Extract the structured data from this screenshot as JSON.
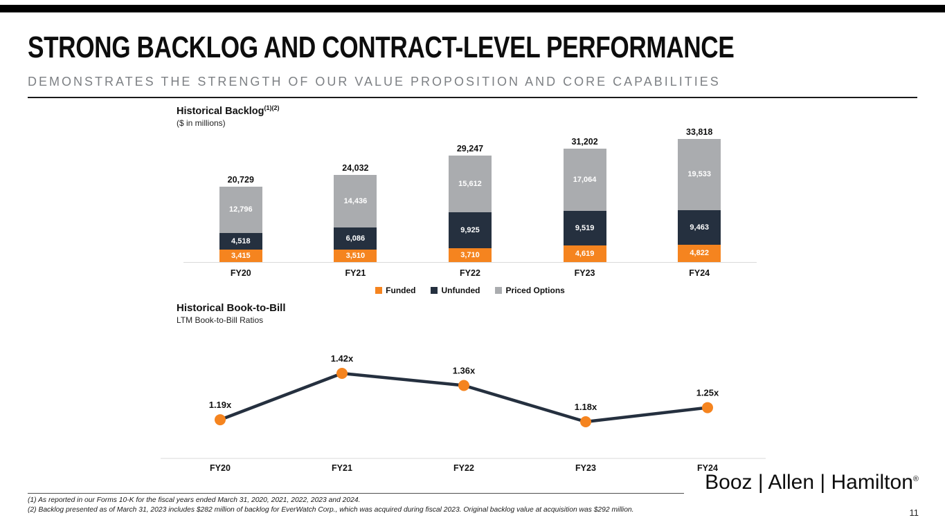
{
  "header": {
    "title": "STRONG BACKLOG AND CONTRACT-LEVEL PERFORMANCE",
    "subtitle": "DEMONSTRATES THE STRENGTH OF OUR VALUE PROPOSITION AND CORE CAPABILITIES"
  },
  "backlog": {
    "title": "Historical Backlog",
    "title_sup": "(1)(2)",
    "subtitle": "($ in millions)"
  },
  "book_to_bill": {
    "title": "Historical Book-to-Bill",
    "subtitle": "LTM Book-to-Bill Ratios"
  },
  "chart_data": [
    {
      "type": "bar",
      "stacked": true,
      "title": "Historical Backlog",
      "units": "$ in millions",
      "categories": [
        "FY20",
        "FY21",
        "FY22",
        "FY23",
        "FY24"
      ],
      "series": [
        {
          "name": "Funded",
          "color": "#F5841F",
          "values": [
            3415,
            3510,
            3710,
            4619,
            4822
          ]
        },
        {
          "name": "Unfunded",
          "color": "#25303F",
          "values": [
            4518,
            6086,
            9925,
            9519,
            9463
          ]
        },
        {
          "name": "Priced Options",
          "color": "#AAACAF",
          "values": [
            12796,
            14436,
            15612,
            17064,
            19533
          ]
        }
      ],
      "totals": [
        20729,
        24032,
        29247,
        31202,
        33818
      ],
      "legend_position": "bottom",
      "grid": false
    },
    {
      "type": "line",
      "title": "Historical Book-to-Bill",
      "ylabel": "LTM Book-to-Bill Ratios",
      "categories": [
        "FY20",
        "FY21",
        "FY22",
        "FY23",
        "FY24"
      ],
      "values": [
        1.19,
        1.42,
        1.36,
        1.18,
        1.25
      ],
      "value_suffix": "x",
      "line_color": "#25303F",
      "marker_color": "#F5841F",
      "grid": false
    }
  ],
  "footnotes": [
    "(1) As reported in our Forms 10-K for the fiscal years ended March 31, 2020, 2021, 2022, 2023 and 2024.",
    "(2) Backlog presented as of March 31, 2023 includes $282 million of backlog for EverWatch Corp., which was acquired during fiscal 2023. Original backlog value at acquisition was $292 million."
  ],
  "logo": {
    "text": "Booz | Allen | Hamilton",
    "registered": "®"
  },
  "page_number": "11"
}
